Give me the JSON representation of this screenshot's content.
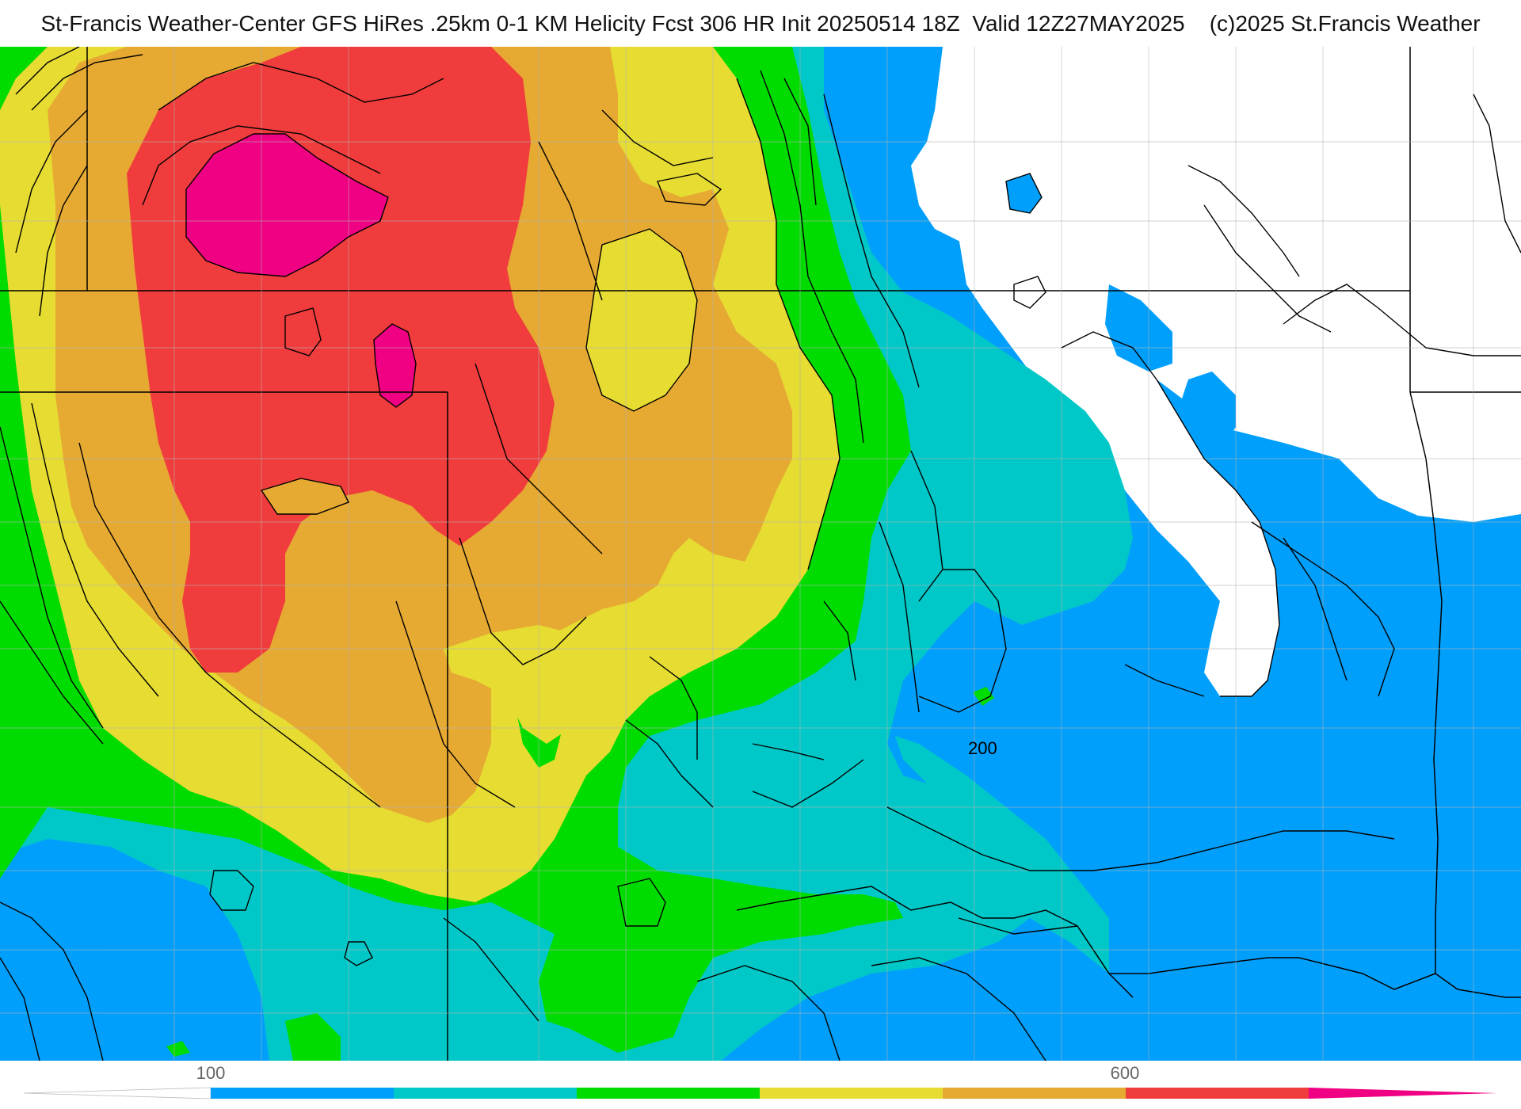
{
  "title": "St-Francis Weather-Center GFS HiRes .25km 0-1 KM Helicity Fcst 306 HR Init 20250514 18Z  Valid 12Z27MAY2025    (c)2025 St.Francis Weather",
  "map": {
    "contour_labels": [
      "200"
    ]
  },
  "colorbar": {
    "tick_labels": [
      "100",
      "600"
    ],
    "colors": [
      "#009ffb",
      "#00c8c8",
      "#00dc00",
      "#e6dc32",
      "#e6aa32",
      "#f03c3c",
      "#f00082"
    ],
    "low_color": "#ffffff"
  },
  "palette": {
    "background": "#ffffff",
    "border": "#000000"
  }
}
